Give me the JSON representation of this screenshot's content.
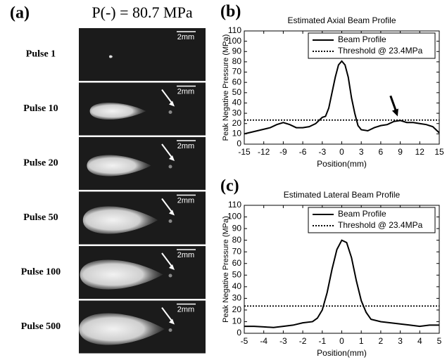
{
  "panel_a": {
    "label": "(a)",
    "title": "P(-) = 80.7 MPa",
    "rows": [
      {
        "label": "Pulse 1",
        "scale": "2mm"
      },
      {
        "label": "Pulse 10",
        "scale": "2mm"
      },
      {
        "label": "Pulse 20",
        "scale": "2mm"
      },
      {
        "label": "Pulse 50",
        "scale": "2mm"
      },
      {
        "label": "Pulse 100",
        "scale": "2mm"
      },
      {
        "label": "Pulse 500",
        "scale": "2mm"
      }
    ]
  },
  "chart_data": [
    {
      "type": "line",
      "panel_label": "(b)",
      "title": "Estimated Axial Beam Profile",
      "x_label": "Position(mm)",
      "y_label": "Peak Negative Pressure (MPa)",
      "xlim": [
        -15,
        15
      ],
      "xticks": [
        -15,
        -12,
        -9,
        -6,
        -3,
        0,
        3,
        6,
        9,
        12,
        15
      ],
      "ylim": [
        0,
        110
      ],
      "yticks": [
        0,
        10,
        20,
        30,
        40,
        50,
        60,
        70,
        80,
        90,
        100,
        110
      ],
      "grid": false,
      "legend": "upper right",
      "series": [
        {
          "name": "Beam Profile",
          "color": "#000000",
          "style": "solid",
          "x": [
            -15,
            -13,
            -11,
            -10,
            -9,
            -8,
            -7,
            -6,
            -5,
            -4,
            -3,
            -2.5,
            -2,
            -1.5,
            -1,
            -0.5,
            0,
            0.5,
            1,
            1.5,
            2,
            2.5,
            3,
            4,
            5,
            6,
            7,
            8,
            9,
            10,
            11,
            12,
            13,
            14,
            15
          ],
          "values": [
            10,
            13,
            16,
            19,
            21,
            19,
            16,
            16,
            17,
            20,
            26,
            27,
            35,
            50,
            65,
            77,
            80.7,
            77,
            65,
            45,
            30,
            18,
            14,
            13,
            16,
            18,
            19,
            22,
            23,
            21,
            21,
            20,
            19,
            17,
            11
          ]
        },
        {
          "name": "Threshold @ 23.4MPa",
          "color": "#000000",
          "style": "dotted",
          "x": [
            -15,
            15
          ],
          "values": [
            23.4,
            23.4
          ]
        }
      ]
    },
    {
      "type": "line",
      "panel_label": "(c)",
      "title": "Estimated Lateral Beam Profile",
      "x_label": "Position(mm)",
      "y_label": "Peak Negative Pressure (MPa)",
      "xlim": [
        -5,
        5
      ],
      "xticks": [
        -5,
        -4,
        -3,
        -2,
        -1,
        0,
        1,
        2,
        3,
        4,
        5
      ],
      "ylim": [
        0,
        110
      ],
      "yticks": [
        0,
        10,
        20,
        30,
        40,
        50,
        60,
        70,
        80,
        90,
        100,
        110
      ],
      "grid": false,
      "legend": "upper right",
      "series": [
        {
          "name": "Beam Profile",
          "color": "#000000",
          "style": "solid",
          "x": [
            -5,
            -4.5,
            -4,
            -3.5,
            -3,
            -2.5,
            -2,
            -1.5,
            -1.25,
            -1,
            -0.75,
            -0.5,
            -0.25,
            0,
            0.25,
            0.5,
            0.75,
            1,
            1.25,
            1.5,
            2,
            2.5,
            3,
            3.5,
            4,
            4.5,
            5
          ],
          "values": [
            6,
            6,
            5.5,
            5,
            6,
            7,
            9,
            10,
            13,
            20,
            35,
            55,
            72,
            80,
            78,
            65,
            45,
            28,
            18,
            12,
            10,
            9,
            8,
            7,
            6,
            7,
            7
          ]
        },
        {
          "name": "Threshold @ 23.4MPa",
          "color": "#000000",
          "style": "dotted",
          "x": [
            -5,
            5
          ],
          "values": [
            23.4,
            23.4
          ]
        }
      ]
    }
  ]
}
